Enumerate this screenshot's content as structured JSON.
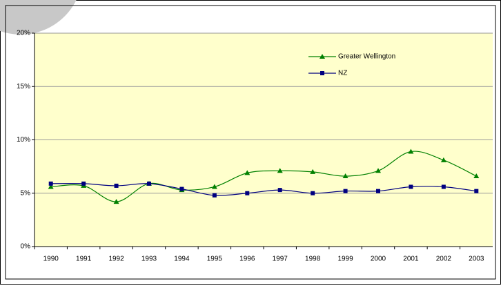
{
  "chart_data": {
    "type": "line",
    "categories": [
      "1990",
      "1991",
      "1992",
      "1993",
      "1994",
      "1995",
      "1996",
      "1997",
      "1998",
      "1999",
      "2000",
      "2001",
      "2002",
      "2003"
    ],
    "series": [
      {
        "name": "Greater Wellington",
        "color": "#008000",
        "marker": "triangle",
        "values": [
          5.6,
          5.7,
          4.2,
          5.9,
          5.3,
          5.6,
          6.9,
          7.1,
          7.0,
          6.6,
          7.1,
          8.9,
          8.1,
          6.6
        ]
      },
      {
        "name": "NZ",
        "color": "#000080",
        "marker": "square",
        "values": [
          5.9,
          5.9,
          5.7,
          5.9,
          5.4,
          4.8,
          5.0,
          5.3,
          5.0,
          5.2,
          5.2,
          5.6,
          5.6,
          5.2
        ]
      }
    ],
    "ylim": [
      0,
      20
    ],
    "yticks": [
      {
        "value": 0,
        "label": "0%"
      },
      {
        "value": 5,
        "label": "5%"
      },
      {
        "value": 10,
        "label": "10%"
      },
      {
        "value": 15,
        "label": "15%"
      },
      {
        "value": 20,
        "label": "20%"
      }
    ],
    "grid": true,
    "smooth": true,
    "legend": "top-right"
  }
}
